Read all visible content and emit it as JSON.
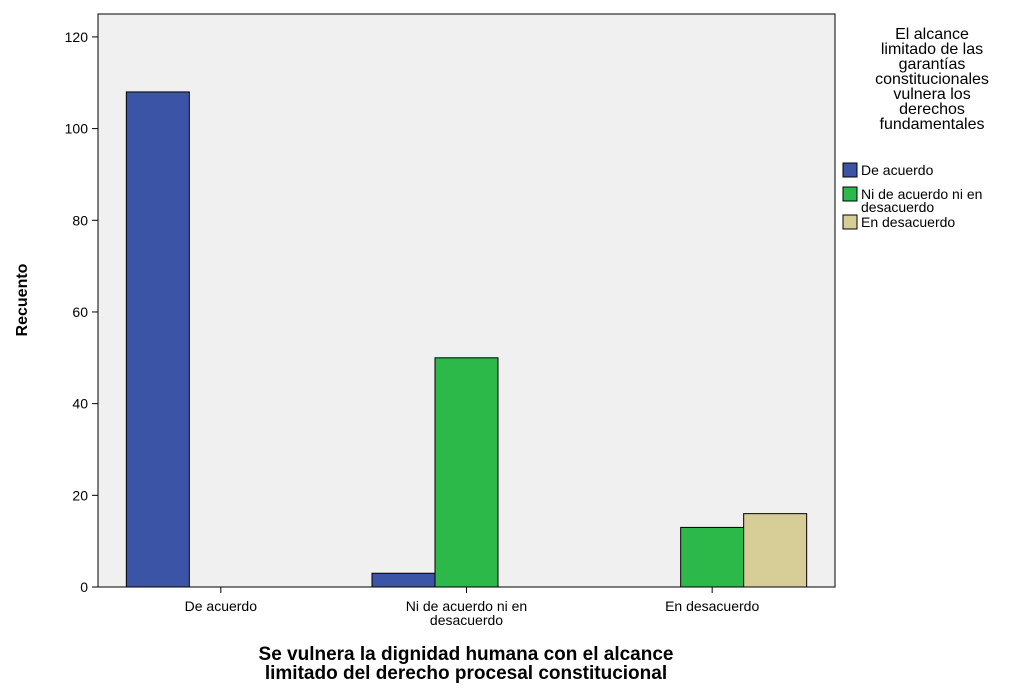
{
  "chart_data": {
    "type": "bar",
    "categories": [
      "De acuerdo",
      "Ni de acuerdo ni en desacuerdo",
      "En desacuerdo"
    ],
    "category_label_lines": [
      [
        "De acuerdo"
      ],
      [
        "Ni de acuerdo ni en",
        "desacuerdo"
      ],
      [
        "En desacuerdo"
      ]
    ],
    "series": [
      {
        "name": "De acuerdo",
        "color": "#3c54a6",
        "values": [
          108,
          3,
          0
        ]
      },
      {
        "name": "Ni de acuerdo ni en desacuerdo",
        "color": "#2db84a",
        "values": [
          0,
          50,
          13
        ]
      },
      {
        "name": "En desacuerdo",
        "color": "#d6cd97",
        "values": [
          0,
          0,
          16
        ]
      }
    ],
    "xlabel": "Se vulnera la dignidad humana con el alcance limitado del derecho procesal constitucional",
    "xlabel_lines": [
      "Se vulnera la dignidad humana con el alcance",
      "limitado del derecho procesal constitucional"
    ],
    "ylabel": "Recuento",
    "ylim": [
      0,
      125
    ],
    "yticks": [
      0,
      20,
      40,
      60,
      80,
      100,
      120
    ],
    "legend": {
      "title": "El alcance limitado de las garantías constitucionales vulnera los derechos fundamentales",
      "title_lines": [
        "El alcance",
        "limitado de las",
        "garantías",
        "constitucionales",
        "vulnera los",
        "derechos",
        "fundamentales"
      ],
      "item_lines": [
        [
          "De acuerdo"
        ],
        [
          "Ni de acuerdo ni en",
          "desacuerdo"
        ],
        [
          "En desacuerdo"
        ]
      ],
      "placement": "right"
    },
    "grid": false,
    "plot_background": "#f0f0f0"
  }
}
